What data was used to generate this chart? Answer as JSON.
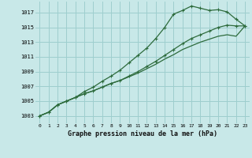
{
  "title": "Graphe pression niveau de la mer (hPa)",
  "bg_color": "#c8e8e8",
  "grid_color": "#9ecece",
  "line_color": "#2d6b3c",
  "x_ticks": [
    0,
    1,
    2,
    3,
    4,
    5,
    6,
    7,
    8,
    9,
    10,
    11,
    12,
    13,
    14,
    15,
    16,
    17,
    18,
    19,
    20,
    21,
    22,
    23
  ],
  "y_ticks": [
    1003,
    1005,
    1007,
    1009,
    1011,
    1013,
    1015,
    1017
  ],
  "xlim": [
    -0.5,
    23.5
  ],
  "ylim": [
    1002.0,
    1018.5
  ],
  "line1_y": [
    1003.0,
    1003.5,
    1004.5,
    1005.0,
    1005.5,
    1006.3,
    1006.9,
    1007.7,
    1008.4,
    1009.2,
    1010.2,
    1011.2,
    1012.2,
    1013.5,
    1015.0,
    1016.8,
    1017.3,
    1017.9,
    1017.6,
    1017.3,
    1017.4,
    1017.1,
    1016.1,
    1015.2
  ],
  "line2_y": [
    1003.0,
    1003.5,
    1004.5,
    1005.0,
    1005.5,
    1006.0,
    1006.4,
    1006.9,
    1007.4,
    1007.8,
    1008.4,
    1009.0,
    1009.7,
    1010.4,
    1011.2,
    1012.0,
    1012.8,
    1013.5,
    1014.0,
    1014.5,
    1015.0,
    1015.3,
    1015.2,
    1015.2
  ],
  "line3_y": [
    1003.0,
    1003.5,
    1004.5,
    1005.0,
    1005.5,
    1006.0,
    1006.4,
    1006.9,
    1007.4,
    1007.8,
    1008.3,
    1008.8,
    1009.4,
    1010.0,
    1010.7,
    1011.3,
    1012.0,
    1012.5,
    1013.0,
    1013.4,
    1013.8,
    1014.0,
    1013.8,
    1015.2
  ]
}
